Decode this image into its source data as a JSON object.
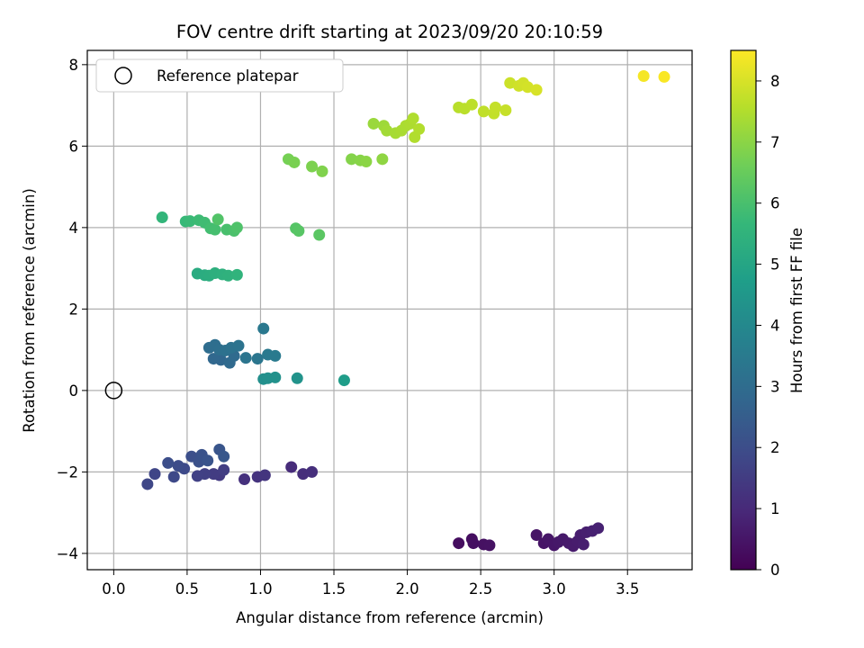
{
  "chart_data": {
    "type": "scatter",
    "title": "FOV centre drift starting at 2023/09/20 20:10:59",
    "xlabel": "Angular distance from reference (arcmin)",
    "ylabel": "Rotation from reference (arcmin)",
    "xlim": [
      -0.18,
      3.94
    ],
    "ylim": [
      -4.4,
      8.35
    ],
    "xticks": [
      0.0,
      0.5,
      1.0,
      1.5,
      2.0,
      2.5,
      3.0,
      3.5
    ],
    "xtick_labels": [
      "0.0",
      "0.5",
      "1.0",
      "1.5",
      "2.0",
      "2.5",
      "3.0",
      "3.5"
    ],
    "yticks": [
      -4,
      -2,
      0,
      2,
      4,
      6,
      8
    ],
    "ytick_labels": [
      "−4",
      "−2",
      "0",
      "2",
      "4",
      "6",
      "8"
    ],
    "grid": true,
    "legend": {
      "placement": "top-left",
      "entries": [
        "Reference platepar"
      ]
    },
    "reference_point": {
      "x": 0.0,
      "y": 0.0,
      "label": "Reference platepar"
    },
    "colorbar": {
      "label": "Hours from first FF file",
      "range": [
        0,
        8.5
      ],
      "ticks": [
        0,
        1,
        2,
        3,
        4,
        5,
        6,
        7,
        8
      ],
      "colormap": "viridis",
      "stops": [
        "#440154",
        "#482878",
        "#3e4a89",
        "#31688e",
        "#26828e",
        "#1f9e89",
        "#35b779",
        "#6ece58",
        "#b5de2b",
        "#fde725"
      ]
    },
    "series": [
      {
        "points": [
          {
            "x": 2.35,
            "y": -3.75,
            "h": 0.3
          },
          {
            "x": 2.44,
            "y": -3.65,
            "h": 0.32
          },
          {
            "x": 2.45,
            "y": -3.75,
            "h": 0.35
          },
          {
            "x": 2.52,
            "y": -3.78,
            "h": 0.38
          },
          {
            "x": 2.56,
            "y": -3.8,
            "h": 0.4
          },
          {
            "x": 2.88,
            "y": -3.55,
            "h": 0.45
          },
          {
            "x": 2.93,
            "y": -3.75,
            "h": 0.47
          },
          {
            "x": 2.96,
            "y": -3.65,
            "h": 0.5
          },
          {
            "x": 3.0,
            "y": -3.8,
            "h": 0.52
          },
          {
            "x": 3.03,
            "y": -3.72,
            "h": 0.55
          },
          {
            "x": 3.06,
            "y": -3.65,
            "h": 0.57
          },
          {
            "x": 3.1,
            "y": -3.75,
            "h": 0.6
          },
          {
            "x": 3.13,
            "y": -3.82,
            "h": 0.62
          },
          {
            "x": 3.16,
            "y": -3.7,
            "h": 0.65
          },
          {
            "x": 3.18,
            "y": -3.55,
            "h": 0.67
          },
          {
            "x": 3.2,
            "y": -3.78,
            "h": 0.7
          },
          {
            "x": 3.22,
            "y": -3.48,
            "h": 0.72
          },
          {
            "x": 3.26,
            "y": -3.45,
            "h": 0.75
          },
          {
            "x": 3.3,
            "y": -3.38,
            "h": 0.78
          },
          {
            "x": 1.21,
            "y": -1.88,
            "h": 1.05
          },
          {
            "x": 1.29,
            "y": -2.05,
            "h": 1.1
          },
          {
            "x": 1.35,
            "y": -2.0,
            "h": 1.15
          },
          {
            "x": 0.89,
            "y": -2.18,
            "h": 1.2
          },
          {
            "x": 0.98,
            "y": -2.12,
            "h": 1.25
          },
          {
            "x": 1.03,
            "y": -2.08,
            "h": 1.3
          },
          {
            "x": 0.72,
            "y": -2.08,
            "h": 1.45
          },
          {
            "x": 0.68,
            "y": -2.05,
            "h": 1.5
          },
          {
            "x": 0.75,
            "y": -1.95,
            "h": 1.55
          },
          {
            "x": 0.62,
            "y": -2.05,
            "h": 1.6
          },
          {
            "x": 0.57,
            "y": -2.1,
            "h": 1.65
          },
          {
            "x": 0.28,
            "y": -2.05,
            "h": 1.75
          },
          {
            "x": 0.23,
            "y": -2.3,
            "h": 1.8
          },
          {
            "x": 0.41,
            "y": -2.12,
            "h": 1.85
          },
          {
            "x": 0.48,
            "y": -1.92,
            "h": 1.9
          },
          {
            "x": 0.44,
            "y": -1.85,
            "h": 1.95
          },
          {
            "x": 0.37,
            "y": -1.78,
            "h": 2.0
          },
          {
            "x": 0.53,
            "y": -1.62,
            "h": 2.05
          },
          {
            "x": 0.58,
            "y": -1.75,
            "h": 2.1
          },
          {
            "x": 0.6,
            "y": -1.58,
            "h": 2.15
          },
          {
            "x": 0.64,
            "y": -1.72,
            "h": 2.2
          },
          {
            "x": 0.72,
            "y": -1.45,
            "h": 2.25
          },
          {
            "x": 0.75,
            "y": -1.62,
            "h": 2.3
          },
          {
            "x": 0.73,
            "y": 0.75,
            "h": 2.8
          },
          {
            "x": 0.68,
            "y": 0.78,
            "h": 2.85
          },
          {
            "x": 0.79,
            "y": 0.68,
            "h": 2.9
          },
          {
            "x": 0.82,
            "y": 0.85,
            "h": 2.95
          },
          {
            "x": 0.65,
            "y": 1.05,
            "h": 3.0
          },
          {
            "x": 0.69,
            "y": 1.12,
            "h": 3.05
          },
          {
            "x": 0.72,
            "y": 1.0,
            "h": 3.1
          },
          {
            "x": 0.76,
            "y": 0.98,
            "h": 3.15
          },
          {
            "x": 0.8,
            "y": 1.05,
            "h": 3.2
          },
          {
            "x": 0.85,
            "y": 1.1,
            "h": 3.25
          },
          {
            "x": 0.9,
            "y": 0.8,
            "h": 3.3
          },
          {
            "x": 0.98,
            "y": 0.78,
            "h": 3.35
          },
          {
            "x": 1.02,
            "y": 1.52,
            "h": 3.4
          },
          {
            "x": 1.05,
            "y": 0.88,
            "h": 3.45
          },
          {
            "x": 1.1,
            "y": 0.85,
            "h": 3.5
          },
          {
            "x": 1.02,
            "y": 0.28,
            "h": 4.2
          },
          {
            "x": 1.05,
            "y": 0.3,
            "h": 4.25
          },
          {
            "x": 1.1,
            "y": 0.32,
            "h": 4.3
          },
          {
            "x": 1.25,
            "y": 0.3,
            "h": 4.35
          },
          {
            "x": 1.57,
            "y": 0.25,
            "h": 4.7
          },
          {
            "x": 0.57,
            "y": 2.87,
            "h": 5.2
          },
          {
            "x": 0.62,
            "y": 2.83,
            "h": 5.25
          },
          {
            "x": 0.65,
            "y": 2.82,
            "h": 5.3
          },
          {
            "x": 0.69,
            "y": 2.88,
            "h": 5.35
          },
          {
            "x": 0.74,
            "y": 2.85,
            "h": 5.4
          },
          {
            "x": 0.78,
            "y": 2.82,
            "h": 5.45
          },
          {
            "x": 0.84,
            "y": 2.84,
            "h": 5.5
          },
          {
            "x": 0.33,
            "y": 4.25,
            "h": 5.6
          },
          {
            "x": 0.49,
            "y": 4.15,
            "h": 5.7
          },
          {
            "x": 0.52,
            "y": 4.16,
            "h": 5.75
          },
          {
            "x": 0.58,
            "y": 4.18,
            "h": 5.8
          },
          {
            "x": 0.62,
            "y": 4.12,
            "h": 5.85
          },
          {
            "x": 0.66,
            "y": 3.98,
            "h": 5.9
          },
          {
            "x": 0.69,
            "y": 3.95,
            "h": 5.95
          },
          {
            "x": 0.77,
            "y": 3.95,
            "h": 6.0
          },
          {
            "x": 0.82,
            "y": 3.92,
            "h": 6.05
          },
          {
            "x": 0.84,
            "y": 4.0,
            "h": 6.1
          },
          {
            "x": 0.71,
            "y": 4.2,
            "h": 6.15
          },
          {
            "x": 1.24,
            "y": 3.98,
            "h": 6.2
          },
          {
            "x": 1.26,
            "y": 3.92,
            "h": 6.25
          },
          {
            "x": 1.4,
            "y": 3.82,
            "h": 6.3
          },
          {
            "x": 1.19,
            "y": 5.68,
            "h": 6.7
          },
          {
            "x": 1.23,
            "y": 5.6,
            "h": 6.75
          },
          {
            "x": 1.35,
            "y": 5.5,
            "h": 6.8
          },
          {
            "x": 1.42,
            "y": 5.38,
            "h": 6.85
          },
          {
            "x": 1.62,
            "y": 5.68,
            "h": 6.9
          },
          {
            "x": 1.68,
            "y": 5.65,
            "h": 6.95
          },
          {
            "x": 1.72,
            "y": 5.62,
            "h": 7.0
          },
          {
            "x": 1.83,
            "y": 5.68,
            "h": 7.05
          },
          {
            "x": 1.77,
            "y": 6.55,
            "h": 7.2
          },
          {
            "x": 1.84,
            "y": 6.5,
            "h": 7.25
          },
          {
            "x": 1.86,
            "y": 6.38,
            "h": 7.3
          },
          {
            "x": 1.92,
            "y": 6.32,
            "h": 7.35
          },
          {
            "x": 1.96,
            "y": 6.38,
            "h": 7.4
          },
          {
            "x": 1.99,
            "y": 6.5,
            "h": 7.42
          },
          {
            "x": 2.02,
            "y": 6.55,
            "h": 7.45
          },
          {
            "x": 2.04,
            "y": 6.68,
            "h": 7.48
          },
          {
            "x": 2.05,
            "y": 6.22,
            "h": 7.5
          },
          {
            "x": 2.08,
            "y": 6.42,
            "h": 7.52
          },
          {
            "x": 2.35,
            "y": 6.95,
            "h": 7.6
          },
          {
            "x": 2.39,
            "y": 6.92,
            "h": 7.62
          },
          {
            "x": 2.44,
            "y": 7.02,
            "h": 7.65
          },
          {
            "x": 2.52,
            "y": 6.85,
            "h": 7.7
          },
          {
            "x": 2.59,
            "y": 6.8,
            "h": 7.72
          },
          {
            "x": 2.6,
            "y": 6.95,
            "h": 7.75
          },
          {
            "x": 2.67,
            "y": 6.88,
            "h": 7.78
          },
          {
            "x": 2.7,
            "y": 7.55,
            "h": 7.85
          },
          {
            "x": 2.76,
            "y": 7.48,
            "h": 7.9
          },
          {
            "x": 2.79,
            "y": 7.55,
            "h": 7.92
          },
          {
            "x": 2.82,
            "y": 7.45,
            "h": 7.95
          },
          {
            "x": 2.88,
            "y": 7.38,
            "h": 8.0
          },
          {
            "x": 3.61,
            "y": 7.72,
            "h": 8.4
          },
          {
            "x": 3.75,
            "y": 7.7,
            "h": 8.45
          }
        ]
      }
    ]
  }
}
